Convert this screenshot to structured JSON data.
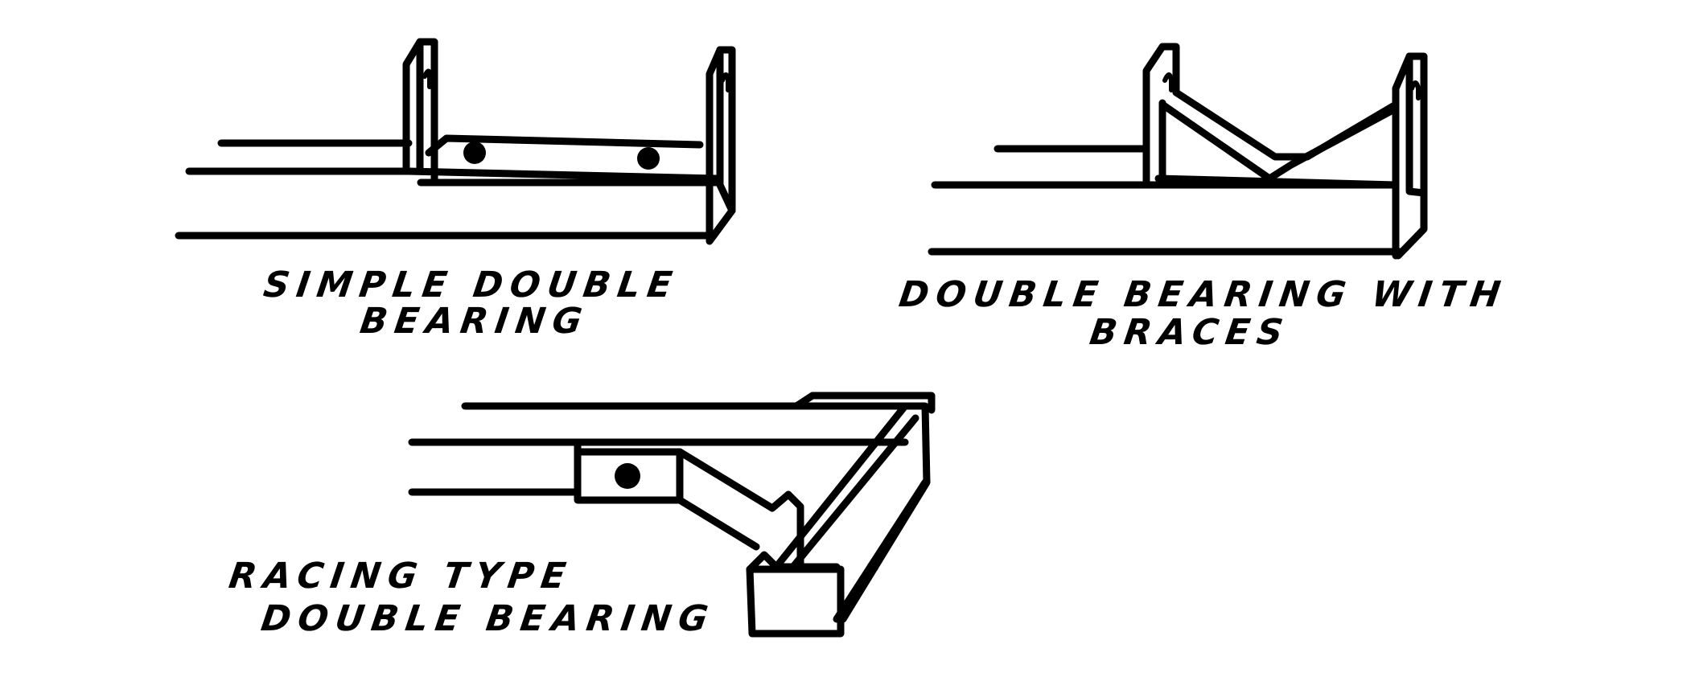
{
  "figures": [
    {
      "id": "simple",
      "caption_line1": "SIMPLE DOUBLE",
      "caption_line2": "BEARING"
    },
    {
      "id": "braced",
      "caption_line1": "DOUBLE BEARING WITH",
      "caption_line2": "BRACES"
    },
    {
      "id": "racing",
      "caption_line1": "RACING TYPE",
      "caption_line2": "DOUBLE BEARING"
    }
  ],
  "colors": {
    "ink": "#000000",
    "paper": "#ffffff"
  }
}
